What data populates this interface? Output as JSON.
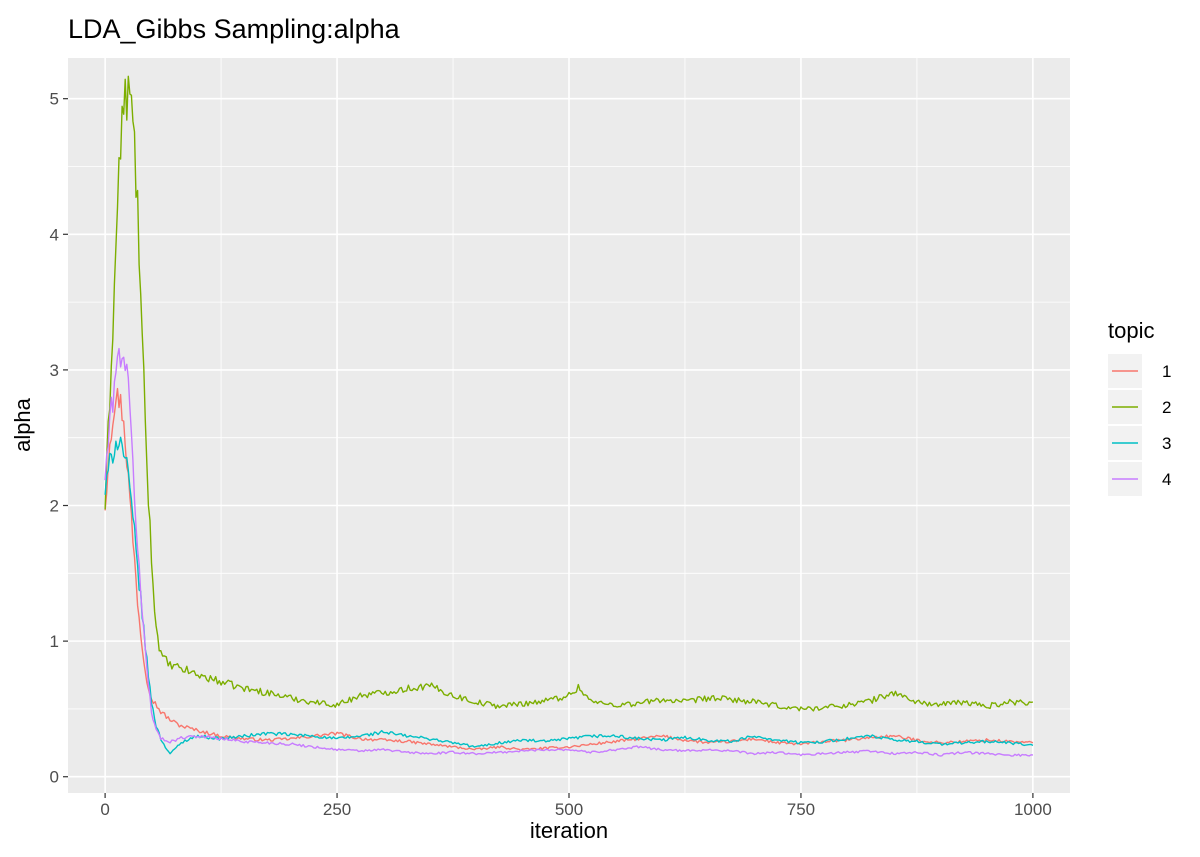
{
  "chart_data": {
    "type": "line",
    "title": "LDA_Gibbs Sampling:alpha",
    "xlabel": "iteration",
    "ylabel": "alpha",
    "xlim": [
      -40,
      1040
    ],
    "ylim": [
      -0.12,
      5.3
    ],
    "x_ticks": [
      0,
      250,
      500,
      750,
      1000
    ],
    "x_tick_labels": [
      "0",
      "250",
      "500",
      "750",
      "1000"
    ],
    "y_ticks": [
      0,
      1,
      2,
      3,
      4,
      5
    ],
    "y_tick_labels": [
      "0",
      "1",
      "2",
      "3",
      "4",
      "5"
    ],
    "grid": true,
    "background": "#ebebeb",
    "legend": {
      "title": "topic",
      "position": "right"
    },
    "series": [
      {
        "name": "1",
        "color": "#F8766D",
        "points": [
          [
            0,
            2.0
          ],
          [
            5,
            2.5
          ],
          [
            10,
            2.75
          ],
          [
            15,
            2.8
          ],
          [
            20,
            2.65
          ],
          [
            25,
            2.2
          ],
          [
            30,
            1.75
          ],
          [
            35,
            1.3
          ],
          [
            40,
            0.95
          ],
          [
            45,
            0.72
          ],
          [
            50,
            0.58
          ],
          [
            60,
            0.48
          ],
          [
            70,
            0.42
          ],
          [
            80,
            0.38
          ],
          [
            90,
            0.36
          ],
          [
            100,
            0.34
          ],
          [
            125,
            0.3
          ],
          [
            150,
            0.28
          ],
          [
            175,
            0.27
          ],
          [
            200,
            0.28
          ],
          [
            225,
            0.3
          ],
          [
            250,
            0.32
          ],
          [
            275,
            0.28
          ],
          [
            300,
            0.27
          ],
          [
            325,
            0.26
          ],
          [
            350,
            0.24
          ],
          [
            375,
            0.22
          ],
          [
            400,
            0.2
          ],
          [
            425,
            0.22
          ],
          [
            450,
            0.2
          ],
          [
            475,
            0.21
          ],
          [
            500,
            0.22
          ],
          [
            525,
            0.24
          ],
          [
            550,
            0.26
          ],
          [
            575,
            0.28
          ],
          [
            600,
            0.3
          ],
          [
            625,
            0.27
          ],
          [
            650,
            0.25
          ],
          [
            675,
            0.26
          ],
          [
            700,
            0.28
          ],
          [
            725,
            0.25
          ],
          [
            750,
            0.24
          ],
          [
            775,
            0.26
          ],
          [
            800,
            0.27
          ],
          [
            825,
            0.29
          ],
          [
            850,
            0.3
          ],
          [
            875,
            0.27
          ],
          [
            900,
            0.25
          ],
          [
            925,
            0.26
          ],
          [
            950,
            0.27
          ],
          [
            975,
            0.26
          ],
          [
            1000,
            0.25
          ]
        ]
      },
      {
        "name": "2",
        "color": "#7CAE00",
        "points": [
          [
            0,
            2.0
          ],
          [
            5,
            2.8
          ],
          [
            10,
            3.6
          ],
          [
            15,
            4.5
          ],
          [
            20,
            4.95
          ],
          [
            25,
            5.05
          ],
          [
            30,
            4.85
          ],
          [
            35,
            4.2
          ],
          [
            40,
            3.2
          ],
          [
            45,
            2.3
          ],
          [
            50,
            1.6
          ],
          [
            55,
            1.1
          ],
          [
            60,
            0.9
          ],
          [
            70,
            0.82
          ],
          [
            80,
            0.8
          ],
          [
            90,
            0.78
          ],
          [
            100,
            0.75
          ],
          [
            125,
            0.7
          ],
          [
            150,
            0.65
          ],
          [
            175,
            0.62
          ],
          [
            200,
            0.58
          ],
          [
            225,
            0.55
          ],
          [
            250,
            0.53
          ],
          [
            275,
            0.6
          ],
          [
            300,
            0.62
          ],
          [
            325,
            0.65
          ],
          [
            350,
            0.67
          ],
          [
            375,
            0.6
          ],
          [
            400,
            0.55
          ],
          [
            425,
            0.52
          ],
          [
            450,
            0.54
          ],
          [
            475,
            0.56
          ],
          [
            500,
            0.6
          ],
          [
            510,
            0.66
          ],
          [
            525,
            0.55
          ],
          [
            550,
            0.53
          ],
          [
            575,
            0.54
          ],
          [
            600,
            0.57
          ],
          [
            625,
            0.55
          ],
          [
            650,
            0.58
          ],
          [
            675,
            0.57
          ],
          [
            700,
            0.55
          ],
          [
            725,
            0.52
          ],
          [
            750,
            0.5
          ],
          [
            775,
            0.51
          ],
          [
            800,
            0.53
          ],
          [
            825,
            0.56
          ],
          [
            850,
            0.62
          ],
          [
            875,
            0.55
          ],
          [
            900,
            0.53
          ],
          [
            925,
            0.55
          ],
          [
            950,
            0.52
          ],
          [
            975,
            0.55
          ],
          [
            1000,
            0.55
          ]
        ]
      },
      {
        "name": "3",
        "color": "#00BFC4",
        "points": [
          [
            0,
            2.1
          ],
          [
            5,
            2.3
          ],
          [
            10,
            2.45
          ],
          [
            15,
            2.5
          ],
          [
            20,
            2.4
          ],
          [
            25,
            2.2
          ],
          [
            30,
            1.9
          ],
          [
            35,
            1.55
          ],
          [
            40,
            1.2
          ],
          [
            45,
            0.85
          ],
          [
            50,
            0.55
          ],
          [
            55,
            0.38
          ],
          [
            60,
            0.28
          ],
          [
            65,
            0.22
          ],
          [
            70,
            0.17
          ],
          [
            75,
            0.2
          ],
          [
            80,
            0.24
          ],
          [
            90,
            0.28
          ],
          [
            100,
            0.3
          ],
          [
            125,
            0.28
          ],
          [
            150,
            0.3
          ],
          [
            175,
            0.32
          ],
          [
            200,
            0.31
          ],
          [
            225,
            0.3
          ],
          [
            250,
            0.28
          ],
          [
            275,
            0.3
          ],
          [
            300,
            0.33
          ],
          [
            325,
            0.3
          ],
          [
            350,
            0.28
          ],
          [
            375,
            0.25
          ],
          [
            400,
            0.22
          ],
          [
            425,
            0.25
          ],
          [
            450,
            0.27
          ],
          [
            475,
            0.26
          ],
          [
            500,
            0.28
          ],
          [
            525,
            0.3
          ],
          [
            550,
            0.3
          ],
          [
            575,
            0.28
          ],
          [
            600,
            0.27
          ],
          [
            625,
            0.29
          ],
          [
            650,
            0.27
          ],
          [
            675,
            0.26
          ],
          [
            700,
            0.3
          ],
          [
            725,
            0.27
          ],
          [
            750,
            0.25
          ],
          [
            775,
            0.26
          ],
          [
            800,
            0.28
          ],
          [
            825,
            0.3
          ],
          [
            850,
            0.27
          ],
          [
            875,
            0.26
          ],
          [
            900,
            0.24
          ],
          [
            925,
            0.25
          ],
          [
            950,
            0.26
          ],
          [
            975,
            0.25
          ],
          [
            1000,
            0.23
          ]
        ]
      },
      {
        "name": "4",
        "color": "#C77CFF",
        "points": [
          [
            0,
            2.2
          ],
          [
            5,
            2.6
          ],
          [
            10,
            2.9
          ],
          [
            15,
            3.1
          ],
          [
            20,
            3.15
          ],
          [
            25,
            2.85
          ],
          [
            30,
            2.3
          ],
          [
            35,
            1.7
          ],
          [
            40,
            1.2
          ],
          [
            45,
            0.8
          ],
          [
            50,
            0.48
          ],
          [
            55,
            0.35
          ],
          [
            60,
            0.28
          ],
          [
            70,
            0.26
          ],
          [
            80,
            0.28
          ],
          [
            90,
            0.3
          ],
          [
            100,
            0.3
          ],
          [
            125,
            0.28
          ],
          [
            150,
            0.26
          ],
          [
            175,
            0.25
          ],
          [
            200,
            0.24
          ],
          [
            225,
            0.22
          ],
          [
            250,
            0.2
          ],
          [
            275,
            0.19
          ],
          [
            300,
            0.2
          ],
          [
            325,
            0.18
          ],
          [
            350,
            0.17
          ],
          [
            375,
            0.18
          ],
          [
            400,
            0.17
          ],
          [
            425,
            0.18
          ],
          [
            450,
            0.19
          ],
          [
            475,
            0.2
          ],
          [
            500,
            0.2
          ],
          [
            525,
            0.18
          ],
          [
            550,
            0.2
          ],
          [
            575,
            0.22
          ],
          [
            600,
            0.2
          ],
          [
            625,
            0.19
          ],
          [
            650,
            0.2
          ],
          [
            675,
            0.19
          ],
          [
            700,
            0.17
          ],
          [
            725,
            0.18
          ],
          [
            750,
            0.16
          ],
          [
            775,
            0.17
          ],
          [
            800,
            0.18
          ],
          [
            825,
            0.19
          ],
          [
            850,
            0.17
          ],
          [
            875,
            0.18
          ],
          [
            900,
            0.16
          ],
          [
            925,
            0.18
          ],
          [
            950,
            0.17
          ],
          [
            975,
            0.16
          ],
          [
            1000,
            0.16
          ]
        ]
      }
    ]
  }
}
